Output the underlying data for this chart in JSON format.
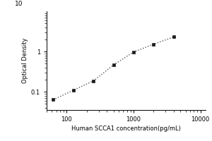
{
  "title": "",
  "xlabel": "Human SCCA1 concentration(pg/mL)",
  "ylabel": "Optical Density",
  "x_data": [
    62.5,
    125,
    250,
    500,
    1000,
    2000,
    4000
  ],
  "y_data": [
    0.063,
    0.108,
    0.185,
    0.46,
    0.97,
    1.52,
    2.3
  ],
  "xlim": [
    50,
    12000
  ],
  "ylim": [
    0.035,
    10
  ],
  "xticks": [
    100,
    1000,
    10000
  ],
  "xtick_labels": [
    "100",
    "1000",
    "10000"
  ],
  "ytick_majors": [
    0.1,
    1
  ],
  "ytick_labels": [
    "0.1",
    "1"
  ],
  "top_label": "10",
  "marker": "s",
  "marker_color": "#1a1a1a",
  "marker_size": 3.5,
  "line_style": "dotted",
  "line_color": "#555555",
  "line_width": 1.0,
  "bg_color": "#ffffff",
  "font_size_axis_label": 6.0,
  "font_size_tick": 6.0,
  "font_size_top_label": 6.5
}
